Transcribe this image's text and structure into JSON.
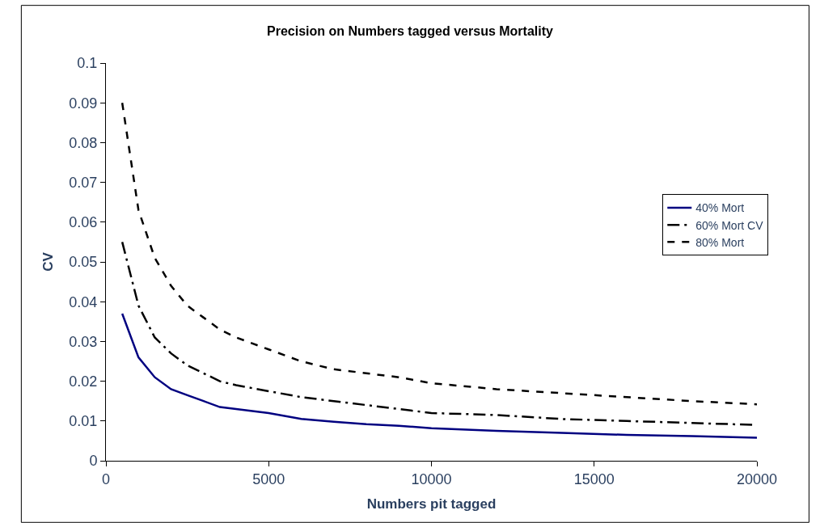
{
  "chart_data": {
    "type": "line",
    "title": "Precision on Numbers tagged versus Mortality",
    "xlabel": "Numbers pit tagged",
    "ylabel": "CV",
    "x": [
      500,
      1000,
      1500,
      2000,
      2500,
      3000,
      3500,
      4000,
      5000,
      6000,
      7000,
      8000,
      9000,
      10000,
      12000,
      14000,
      16000,
      18000,
      20000
    ],
    "series": [
      {
        "name": "40% Mort",
        "color": "#000080",
        "line_style": "solid",
        "values": [
          0.037,
          0.026,
          0.021,
          0.018,
          0.0165,
          0.015,
          0.0135,
          0.013,
          0.012,
          0.0105,
          0.0098,
          0.0092,
          0.0088,
          0.0082,
          0.0075,
          0.007,
          0.0065,
          0.0062,
          0.0058
        ]
      },
      {
        "name": "60% Mort CV",
        "color": "#000000",
        "line_style": "dashed",
        "values": [
          0.055,
          0.039,
          0.031,
          0.027,
          0.024,
          0.022,
          0.02,
          0.019,
          0.0175,
          0.016,
          0.015,
          0.014,
          0.013,
          0.012,
          0.0115,
          0.0105,
          0.01,
          0.0095,
          0.009
        ]
      },
      {
        "name": "80% Mort",
        "color": "#000000",
        "line_style": "dotted",
        "values": [
          0.09,
          0.063,
          0.051,
          0.044,
          0.039,
          0.036,
          0.033,
          0.031,
          0.028,
          0.025,
          0.023,
          0.022,
          0.021,
          0.0195,
          0.018,
          0.017,
          0.016,
          0.015,
          0.0142
        ]
      }
    ],
    "xlim": [
      0,
      20000
    ],
    "xticks": [
      0,
      5000,
      10000,
      15000,
      20000
    ],
    "ylim": [
      0,
      0.1
    ],
    "yticks": [
      0,
      0.01,
      0.02,
      0.03,
      0.04,
      0.05,
      0.06,
      0.07,
      0.08,
      0.09,
      0.1
    ],
    "grid": false,
    "legend": "right",
    "marker": "none"
  }
}
